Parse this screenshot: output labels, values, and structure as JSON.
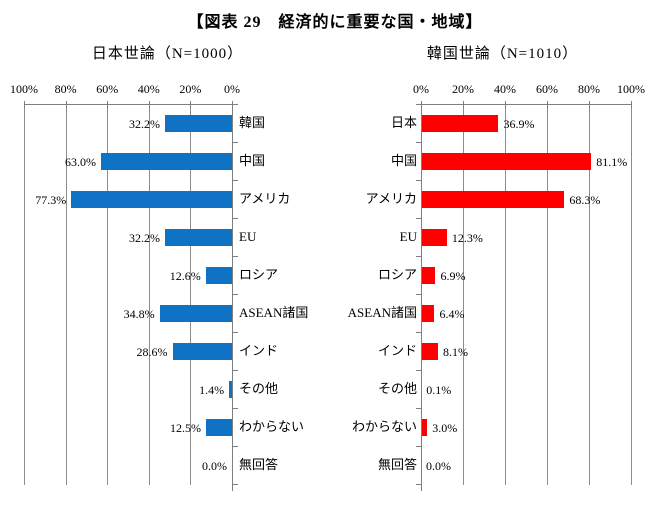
{
  "title": "【図表 29　経済的に重要な国・地域】",
  "chart_data": [
    {
      "type": "bar",
      "title": "日本世論（N=1000）",
      "orientation": "horizontal",
      "direction": "right-to-left",
      "bar_color": "#0F72C4",
      "grid": true,
      "xlim": [
        0,
        100
      ],
      "axis_tick_labels": [
        "100%",
        "80%",
        "60%",
        "40%",
        "20%",
        "0%"
      ],
      "categories": [
        "韓国",
        "中国",
        "アメリカ",
        "EU",
        "ロシア",
        "ASEAN諸国",
        "インド",
        "その他",
        "わからない",
        "無回答"
      ],
      "values": [
        32.2,
        63.0,
        77.3,
        32.2,
        12.6,
        34.8,
        28.6,
        1.4,
        12.5,
        0.0
      ],
      "value_labels": [
        "32.2%",
        "63.0%",
        "77.3%",
        "32.2%",
        "12.6%",
        "34.8%",
        "28.6%",
        "1.4%",
        "12.5%",
        "0.0%"
      ]
    },
    {
      "type": "bar",
      "title": "韓国世論（N=1010）",
      "orientation": "horizontal",
      "direction": "left-to-right",
      "bar_color": "#FF0000",
      "grid": true,
      "xlim": [
        0,
        100
      ],
      "axis_tick_labels": [
        "0%",
        "20%",
        "40%",
        "60%",
        "80%",
        "100%"
      ],
      "categories": [
        "日本",
        "中国",
        "アメリカ",
        "EU",
        "ロシア",
        "ASEAN諸国",
        "インド",
        "その他",
        "わからない",
        "無回答"
      ],
      "values": [
        36.9,
        81.1,
        68.3,
        12.3,
        6.9,
        6.4,
        8.1,
        0.1,
        3.0,
        0.0
      ],
      "value_labels": [
        "36.9%",
        "81.1%",
        "68.3%",
        "12.3%",
        "6.9%",
        "6.4%",
        "8.1%",
        "0.1%",
        "3.0%",
        "0.0%"
      ]
    }
  ]
}
